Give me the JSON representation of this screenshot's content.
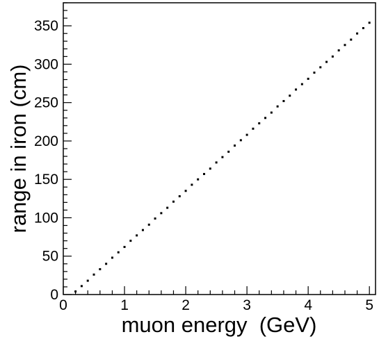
{
  "chart_data": {
    "type": "scatter",
    "title": "",
    "xlabel": "muon energy  (GeV)",
    "ylabel": "range in iron (cm)",
    "xlim": [
      0,
      5.1
    ],
    "ylim": [
      0,
      380
    ],
    "x_ticks": [
      0,
      1,
      2,
      3,
      4,
      5
    ],
    "y_ticks": [
      0,
      50,
      100,
      150,
      200,
      250,
      300,
      350
    ],
    "x_tick_labels": [
      "0",
      "1",
      "2",
      "3",
      "4",
      "5"
    ],
    "y_tick_labels": [
      "0",
      "50",
      "100",
      "150",
      "200",
      "250",
      "300",
      "350"
    ],
    "grid": false,
    "legend": "none",
    "marker_color": "#000000",
    "series": [
      {
        "x": [
          0.2,
          0.3,
          0.4,
          0.5,
          0.6,
          0.7,
          0.8,
          0.9,
          1.0,
          1.1,
          1.2,
          1.3,
          1.4,
          1.5,
          1.6,
          1.7,
          1.8,
          1.9,
          2.0,
          2.1,
          2.2,
          2.3,
          2.4,
          2.5,
          2.6,
          2.7,
          2.8,
          2.9,
          3.0,
          3.1,
          3.2,
          3.3,
          3.4,
          3.5,
          3.6,
          3.7,
          3.8,
          3.9,
          4.0,
          4.1,
          4.2,
          4.3,
          4.4,
          4.5,
          4.6,
          4.7,
          4.8,
          4.9,
          5.0
        ],
        "y": [
          4,
          11,
          18,
          26,
          33,
          40,
          48,
          55,
          62,
          70,
          77,
          84,
          91,
          99,
          106,
          113,
          121,
          128,
          135,
          143,
          150,
          157,
          164,
          172,
          179,
          186,
          194,
          201,
          208,
          216,
          223,
          230,
          237,
          245,
          252,
          259,
          267,
          274,
          281,
          289,
          296,
          303,
          310,
          318,
          325,
          332,
          340,
          347,
          354
        ]
      }
    ]
  }
}
